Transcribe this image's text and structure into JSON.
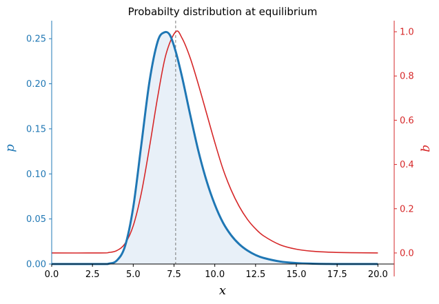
{
  "chart_data": {
    "type": "line",
    "title": "Probabilty distribution at equilibrium",
    "xlabel": "x",
    "ylabel_left": "p",
    "ylabel_right": "q",
    "xlim": [
      0,
      21
    ],
    "ylim_left": [
      0,
      0.27
    ],
    "ylim_right": [
      -0.05,
      1.05
    ],
    "x_ticks": [
      "0.0",
      "2.5",
      "5.0",
      "7.5",
      "10.0",
      "12.5",
      "15.0",
      "17.5",
      "20.0"
    ],
    "y_ticks_left": [
      "0.00",
      "0.05",
      "0.10",
      "0.15",
      "0.20",
      "0.25"
    ],
    "y_ticks_right": [
      "0.0",
      "0.2",
      "0.4",
      "0.6",
      "0.8",
      "1.0"
    ],
    "grid": false,
    "vline_x": 7.6,
    "colors": {
      "p": "#1f77b4",
      "q": "#d62728",
      "fill": "#e8f0f8",
      "vline": "#777777"
    },
    "series": [
      {
        "axis": "left",
        "x": [
          0,
          3,
          3.5,
          4,
          4.5,
          5,
          5.5,
          6,
          6.5,
          6.9,
          7.25,
          7.6,
          8,
          8.5,
          9,
          9.5,
          10,
          10.5,
          11,
          11.5,
          12,
          12.5,
          13,
          14,
          15,
          16,
          17,
          18,
          20
        ],
        "values": [
          0,
          0,
          0.0004,
          0.004,
          0.02,
          0.063,
          0.133,
          0.203,
          0.247,
          0.257,
          0.254,
          0.236,
          0.207,
          0.165,
          0.125,
          0.092,
          0.066,
          0.046,
          0.032,
          0.022,
          0.015,
          0.01,
          0.0067,
          0.0028,
          0.0011,
          0.0004,
          0.0001,
          0,
          0
        ]
      },
      {
        "axis": "right",
        "x": [
          0,
          3,
          3.5,
          4,
          4.5,
          5,
          5.5,
          6,
          6.5,
          7,
          7.6,
          8,
          8.5,
          9,
          9.5,
          10,
          10.5,
          11,
          11.5,
          12,
          12.5,
          13,
          14,
          15,
          16,
          17,
          18,
          20
        ],
        "values": [
          0,
          0,
          0.002,
          0.011,
          0.043,
          0.123,
          0.272,
          0.48,
          0.706,
          0.896,
          1.0,
          0.97,
          0.88,
          0.76,
          0.63,
          0.5,
          0.38,
          0.285,
          0.21,
          0.152,
          0.109,
          0.077,
          0.037,
          0.017,
          0.0077,
          0.0034,
          0.0015,
          0
        ]
      }
    ]
  }
}
